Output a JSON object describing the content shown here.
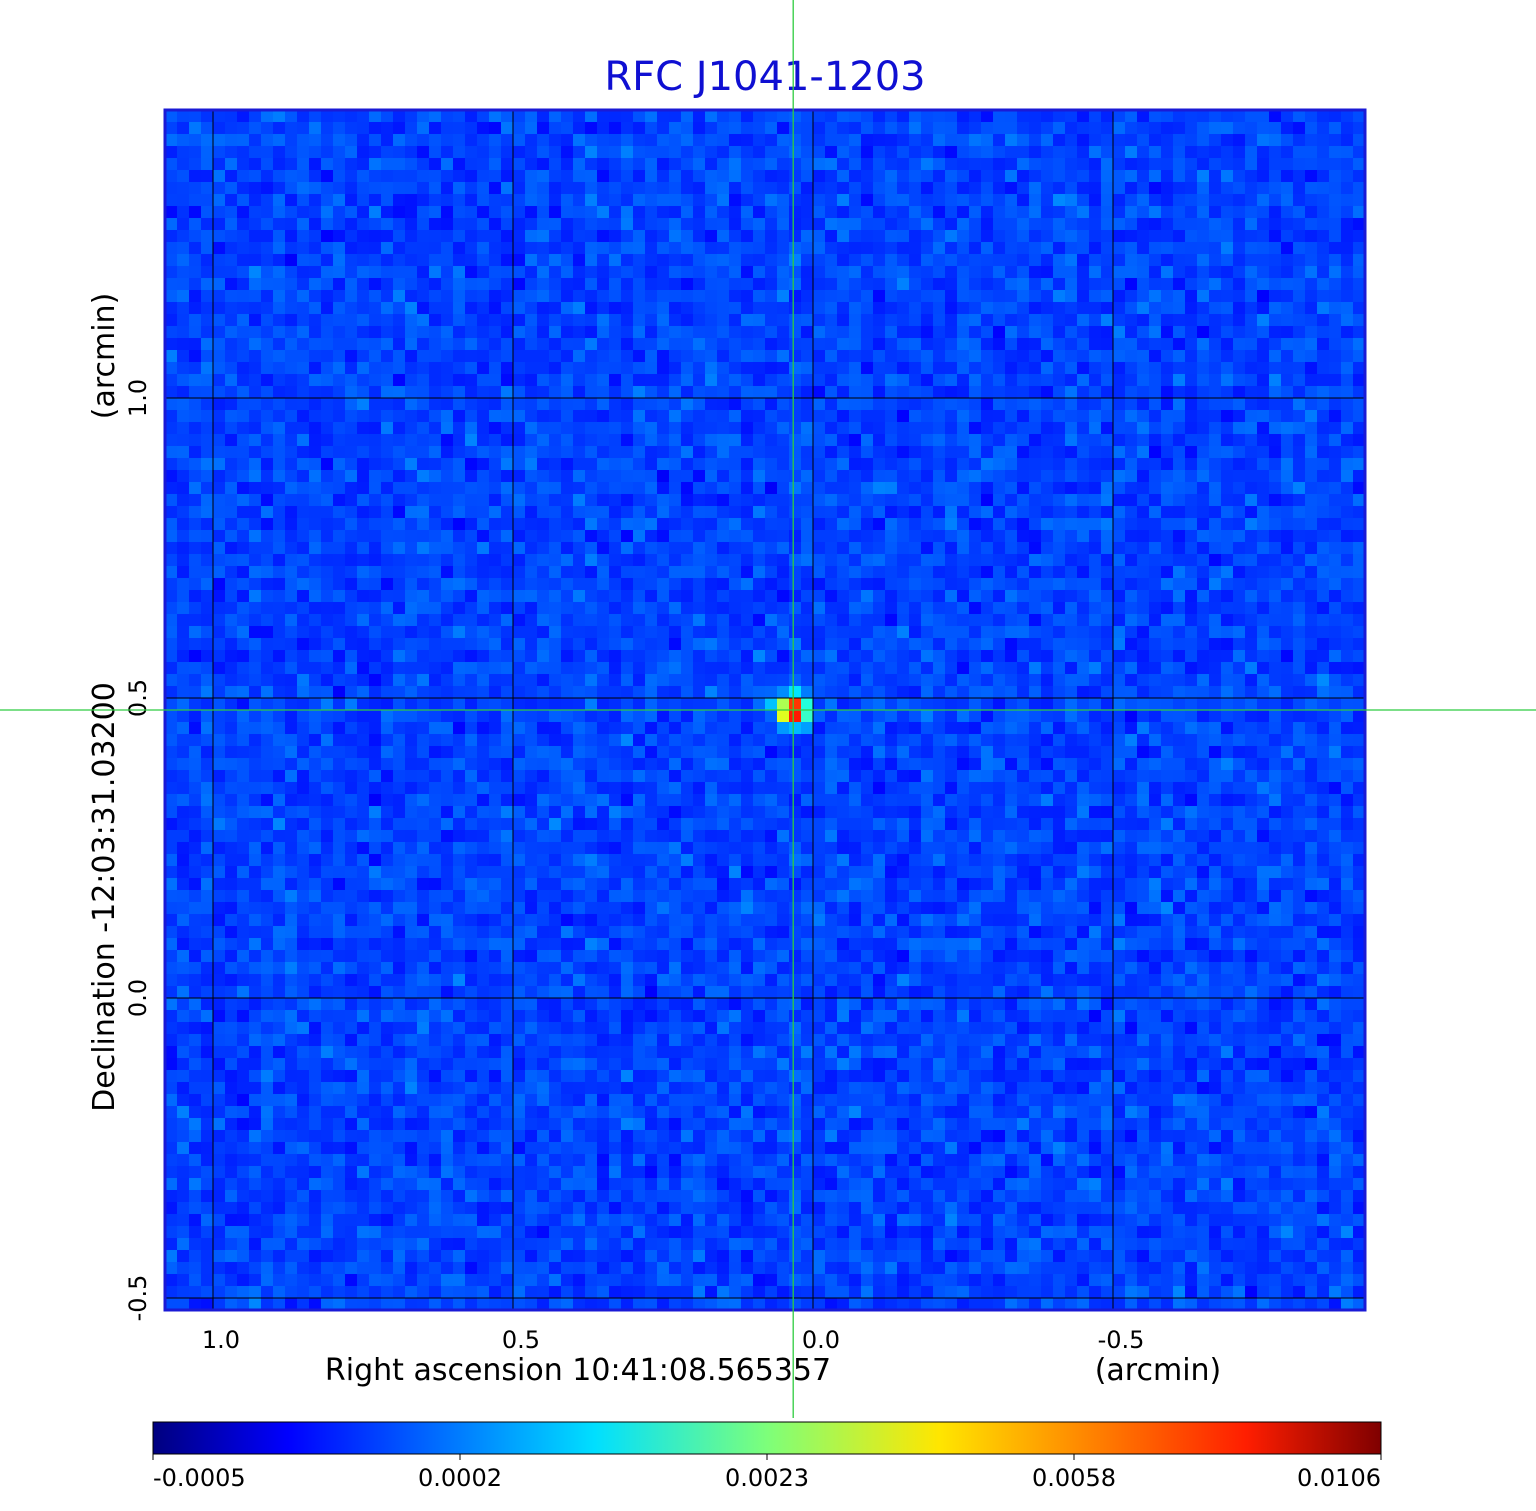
{
  "chart_data": {
    "type": "heatmap",
    "title": "RFC J1041-1203",
    "xlabel": "Right ascension  10:41:08.565357",
    "xlabel_unit": "(arcmin)",
    "ylabel": "Declination  -12:03:31.03200",
    "ylabel_unit": "(arcmin)",
    "xlim": [
      1.08,
      -0.92
    ],
    "ylim": [
      -0.52,
      1.48
    ],
    "x_ticks": [
      {
        "value": 1.0,
        "label": "1.0"
      },
      {
        "value": 0.5,
        "label": "0.5"
      },
      {
        "value": 0.0,
        "label": "0.0"
      },
      {
        "value": -0.5,
        "label": "-0.5"
      }
    ],
    "y_ticks": [
      {
        "value": -0.5,
        "label": "-0.5"
      },
      {
        "value": 0.0,
        "label": "0.0"
      },
      {
        "value": 0.5,
        "label": "0.5"
      },
      {
        "value": 1.0,
        "label": "1.0"
      }
    ],
    "grid": true,
    "crosshair": {
      "x": 0.033,
      "y": 0.48,
      "color": "#2ecc40"
    },
    "source_peak": {
      "x": 0.033,
      "y": 0.48,
      "value": 0.0106
    },
    "colormap": "jet",
    "colorbar": {
      "placement": "bottom",
      "min": -0.0005,
      "max": 0.0106,
      "ticks": [
        "-0.0005",
        "0.0002",
        "0.0023",
        "0.0058",
        "0.0106"
      ]
    }
  }
}
